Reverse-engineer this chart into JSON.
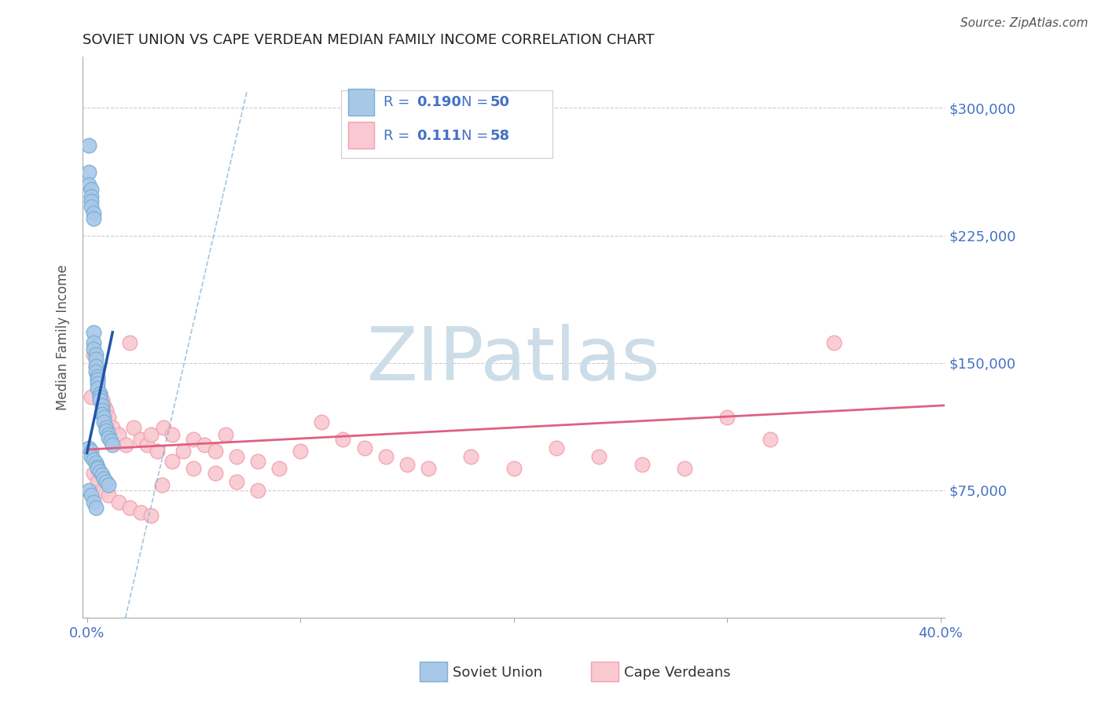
{
  "title": "SOVIET UNION VS CAPE VERDEAN MEDIAN FAMILY INCOME CORRELATION CHART",
  "source_text": "Source: ZipAtlas.com",
  "ylabel": "Median Family Income",
  "xlim": [
    -0.002,
    0.402
  ],
  "ylim": [
    0,
    330000
  ],
  "xticks": [
    0.0,
    0.1,
    0.2,
    0.3,
    0.4
  ],
  "xticklabels": [
    "0.0%",
    "",
    "",
    "",
    "40.0%"
  ],
  "yticks_right": [
    75000,
    150000,
    225000,
    300000
  ],
  "ytick_labels_right": [
    "$75,000",
    "$150,000",
    "$225,000",
    "$300,000"
  ],
  "grid_color": "#cccccc",
  "background_color": "#ffffff",
  "watermark_text": "ZIPatlas",
  "watermark_color": "#ccdde8",
  "soviet_color": "#7bafd4",
  "soviet_color_fill": "#a8c8e8",
  "cape_color": "#f4a0b0",
  "cape_color_fill": "#f9c8d0",
  "soviet_R": 0.19,
  "soviet_N": 50,
  "cape_R": 0.111,
  "cape_N": 58,
  "soviet_scatter_x": [
    0.001,
    0.001,
    0.001,
    0.002,
    0.002,
    0.002,
    0.002,
    0.003,
    0.003,
    0.003,
    0.003,
    0.003,
    0.004,
    0.004,
    0.004,
    0.004,
    0.005,
    0.005,
    0.005,
    0.005,
    0.006,
    0.006,
    0.006,
    0.007,
    0.007,
    0.007,
    0.008,
    0.008,
    0.009,
    0.009,
    0.01,
    0.01,
    0.011,
    0.012,
    0.001,
    0.002,
    0.002,
    0.003,
    0.004,
    0.005,
    0.005,
    0.006,
    0.007,
    0.008,
    0.009,
    0.01,
    0.001,
    0.002,
    0.003,
    0.004
  ],
  "soviet_scatter_y": [
    278000,
    262000,
    255000,
    252000,
    248000,
    245000,
    242000,
    238000,
    235000,
    168000,
    162000,
    158000,
    155000,
    152000,
    148000,
    145000,
    142000,
    140000,
    138000,
    135000,
    132000,
    130000,
    128000,
    125000,
    122000,
    120000,
    118000,
    115000,
    112000,
    110000,
    108000,
    106000,
    104000,
    102000,
    100000,
    98000,
    95000,
    93000,
    91000,
    89000,
    88000,
    86000,
    84000,
    82000,
    80000,
    78000,
    75000,
    72000,
    68000,
    65000
  ],
  "cape_scatter_x": [
    0.002,
    0.003,
    0.004,
    0.005,
    0.006,
    0.007,
    0.008,
    0.009,
    0.01,
    0.012,
    0.015,
    0.018,
    0.02,
    0.022,
    0.025,
    0.028,
    0.03,
    0.033,
    0.036,
    0.04,
    0.045,
    0.05,
    0.055,
    0.06,
    0.065,
    0.07,
    0.08,
    0.09,
    0.1,
    0.11,
    0.12,
    0.13,
    0.14,
    0.15,
    0.16,
    0.18,
    0.2,
    0.22,
    0.24,
    0.26,
    0.28,
    0.3,
    0.32,
    0.35,
    0.003,
    0.005,
    0.007,
    0.01,
    0.015,
    0.02,
    0.025,
    0.03,
    0.035,
    0.04,
    0.05,
    0.06,
    0.07,
    0.08
  ],
  "cape_scatter_y": [
    130000,
    155000,
    148000,
    140000,
    132000,
    128000,
    125000,
    122000,
    118000,
    112000,
    108000,
    102000,
    162000,
    112000,
    105000,
    102000,
    108000,
    98000,
    112000,
    108000,
    98000,
    105000,
    102000,
    98000,
    108000,
    95000,
    92000,
    88000,
    98000,
    115000,
    105000,
    100000,
    95000,
    90000,
    88000,
    95000,
    88000,
    100000,
    95000,
    90000,
    88000,
    118000,
    105000,
    162000,
    85000,
    80000,
    75000,
    72000,
    68000,
    65000,
    62000,
    60000,
    78000,
    92000,
    88000,
    85000,
    80000,
    75000
  ],
  "title_color": "#222222",
  "title_fontsize": 13,
  "axis_label_color": "#555555",
  "tick_label_color_blue": "#4472c4"
}
